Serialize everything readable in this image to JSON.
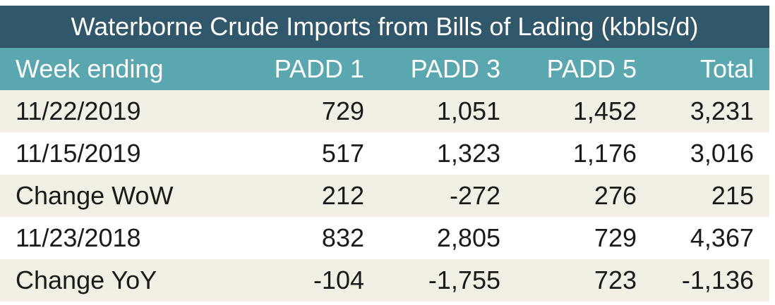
{
  "chart_data": {
    "type": "table",
    "title": "Waterborne Crude Imports from Bills of Lading (kbbls/d)",
    "columns": [
      "Week ending",
      "PADD 1",
      "PADD 3",
      "PADD 5",
      "Total"
    ],
    "rows": [
      [
        "11/22/2019",
        "729",
        "1,051",
        "1,452",
        "3,231"
      ],
      [
        "11/15/2019",
        "517",
        "1,323",
        "1,176",
        "3,016"
      ],
      [
        "Change WoW",
        "212",
        "-272",
        "276",
        "215"
      ],
      [
        "11/23/2018",
        "832",
        "2,805",
        "729",
        "4,367"
      ],
      [
        "Change YoY",
        "-104",
        "-1,755",
        "723",
        "-1,136"
      ]
    ]
  },
  "colors": {
    "title_bg": "#31576a",
    "header_bg": "#5aa7b0",
    "shaded_row_bg": "#f2f0e4",
    "plain_row_bg": "#ffffff"
  }
}
